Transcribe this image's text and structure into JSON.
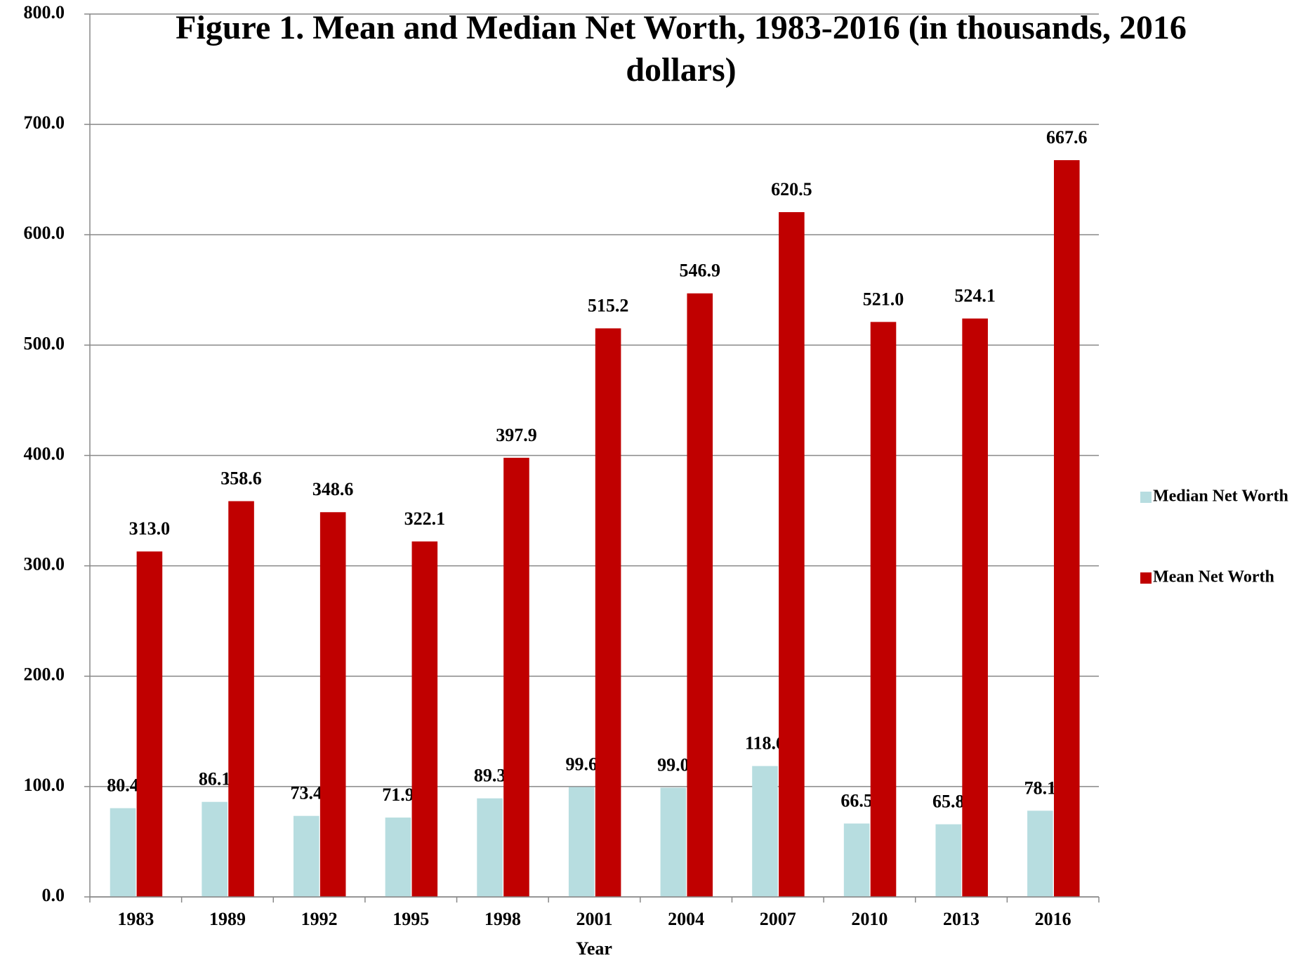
{
  "chart_data": {
    "type": "bar",
    "title": "Figure 1. Mean and Median Net Worth, 1983-2016 (in thousands, 2016 dollars)",
    "x_label": "Year",
    "categories": [
      "1983",
      "1989",
      "1992",
      "1995",
      "1998",
      "2001",
      "2004",
      "2007",
      "2010",
      "2013",
      "2016"
    ],
    "series": [
      {
        "name": "Median Net Worth",
        "color": "#b7dde0",
        "values": [
          80.4,
          86.1,
          73.4,
          71.9,
          89.3,
          99.6,
          99.0,
          118.6,
          66.5,
          65.8,
          78.1
        ],
        "value_labels": [
          "80.4",
          "86.1",
          "73.4",
          "71.9",
          "89.3",
          "99.6",
          "99.0",
          "118.6",
          "66.5",
          "65.8",
          "78.1"
        ]
      },
      {
        "name": "Mean Net Worth",
        "color": "#c00000",
        "values": [
          313.0,
          358.6,
          348.6,
          322.1,
          397.9,
          515.2,
          546.9,
          620.5,
          521.0,
          524.1,
          667.6
        ],
        "value_labels": [
          "313.0",
          "358.6",
          "348.6",
          "322.1",
          "397.9",
          "515.2",
          "546.9",
          "620.5",
          "521.0",
          "524.1",
          "667.6"
        ]
      }
    ],
    "ylim": [
      0,
      800
    ],
    "yticks": [
      {
        "value": 0,
        "label": "0.0"
      },
      {
        "value": 100,
        "label": "100.0"
      },
      {
        "value": 200,
        "label": "200.0"
      },
      {
        "value": 300,
        "label": "300.0"
      },
      {
        "value": 400,
        "label": "400.0"
      },
      {
        "value": 500,
        "label": "500.0"
      },
      {
        "value": 600,
        "label": "600.0"
      },
      {
        "value": 700,
        "label": "700.0"
      },
      {
        "value": 800,
        "label": "800.0"
      }
    ],
    "grid": true,
    "legend": "right"
  }
}
